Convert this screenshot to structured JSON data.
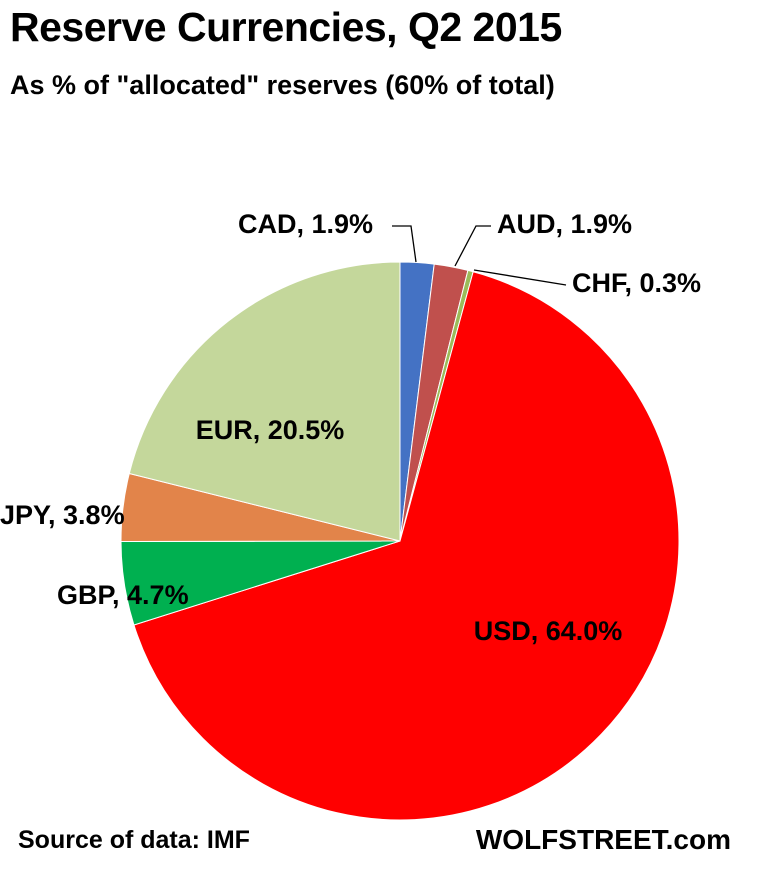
{
  "header": {
    "title": "Reserve Currencies, Q2 2015",
    "subtitle": "As % of \"allocated\" reserves (60% of total)"
  },
  "footer": {
    "source": "Source of data: IMF",
    "brand": "WOLFSTREET.com"
  },
  "chart_data": {
    "type": "pie",
    "title": "Reserve Currencies, Q2 2015",
    "subtitle": "As % of \"allocated\" reserves (60% of total)",
    "unit": "%",
    "slices": [
      {
        "name": "CAD",
        "value": 1.9,
        "label": "CAD, 1.9%",
        "color": "#4472c4"
      },
      {
        "name": "AUD",
        "value": 1.9,
        "label": "AUD, 1.9%",
        "color": "#c0504d"
      },
      {
        "name": "CHF",
        "value": 0.3,
        "label": "CHF, 0.3%",
        "color": "#9bbb59"
      },
      {
        "name": "USD",
        "value": 64.0,
        "label": "USD, 64.0%",
        "color": "#ff0000"
      },
      {
        "name": "GBP",
        "value": 4.7,
        "label": "GBP, 4.7%",
        "color": "#00b050"
      },
      {
        "name": "JPY",
        "value": 3.8,
        "label": "JPY, 3.8%",
        "color": "#e2844a"
      },
      {
        "name": "EUR",
        "value": 20.5,
        "label": "EUR, 20.5%",
        "color": "#c4d79b"
      }
    ],
    "start_angle": "12 o'clock, clockwise",
    "legend": "none (data labels on slices)"
  }
}
